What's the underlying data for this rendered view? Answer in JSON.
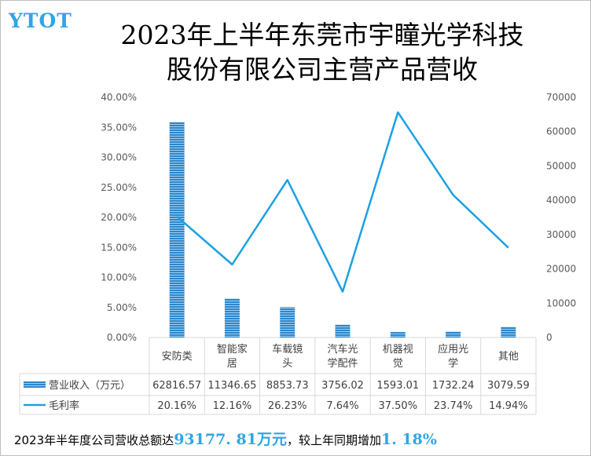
{
  "logo": "YTOT",
  "title_line1": "2023年上半年东莞市宇瞳光学科技",
  "title_line2": "股份有限公司主营产品营收",
  "colors": {
    "bar": "#2e86c9",
    "line": "#1ba1e2",
    "highlight": "#2ea6e6"
  },
  "chart_data": {
    "type": "bar",
    "title": "2023年上半年东莞市宇瞳光学科技股份有限公司主营产品营收",
    "categories": [
      [
        "安防类"
      ],
      [
        "智能家",
        "居"
      ],
      [
        "车载镜",
        "头"
      ],
      [
        "汽车光",
        "学配件"
      ],
      [
        "机器视",
        "觉"
      ],
      [
        "应用光",
        "学"
      ],
      [
        "其他"
      ]
    ],
    "series": [
      {
        "name": "营业收入（万元）",
        "type": "bar",
        "axis": "right",
        "values": [
          62816.57,
          11346.65,
          8853.73,
          3756.02,
          1593.01,
          1732.24,
          3079.59
        ],
        "labels": [
          "62816.57",
          "11346.65",
          "8853.73",
          "3756.02",
          "1593.01",
          "1732.24",
          "3079.59"
        ]
      },
      {
        "name": "毛利率",
        "type": "line",
        "axis": "left",
        "values": [
          20.16,
          12.16,
          26.23,
          7.64,
          37.5,
          23.74,
          14.94
        ],
        "labels": [
          "20.16%",
          "12.16%",
          "26.23%",
          "7.64%",
          "37.50%",
          "23.74%",
          "14.94%"
        ]
      }
    ],
    "y_left": {
      "min": 0,
      "max": 40,
      "ticks": [
        "0.00%",
        "5.00%",
        "10.00%",
        "15.00%",
        "20.00%",
        "25.00%",
        "30.00%",
        "35.00%",
        "40.00%"
      ]
    },
    "y_right": {
      "min": 0,
      "max": 70000,
      "ticks": [
        "0",
        "10000",
        "20000",
        "30000",
        "40000",
        "50000",
        "60000",
        "70000"
      ]
    },
    "legend": "data-table"
  },
  "footer": {
    "prefix": "2023年半年度公司营收总额达",
    "total": "93177. 81万元",
    "middle": "，较上年同期增加",
    "growth": "1. 18%"
  }
}
